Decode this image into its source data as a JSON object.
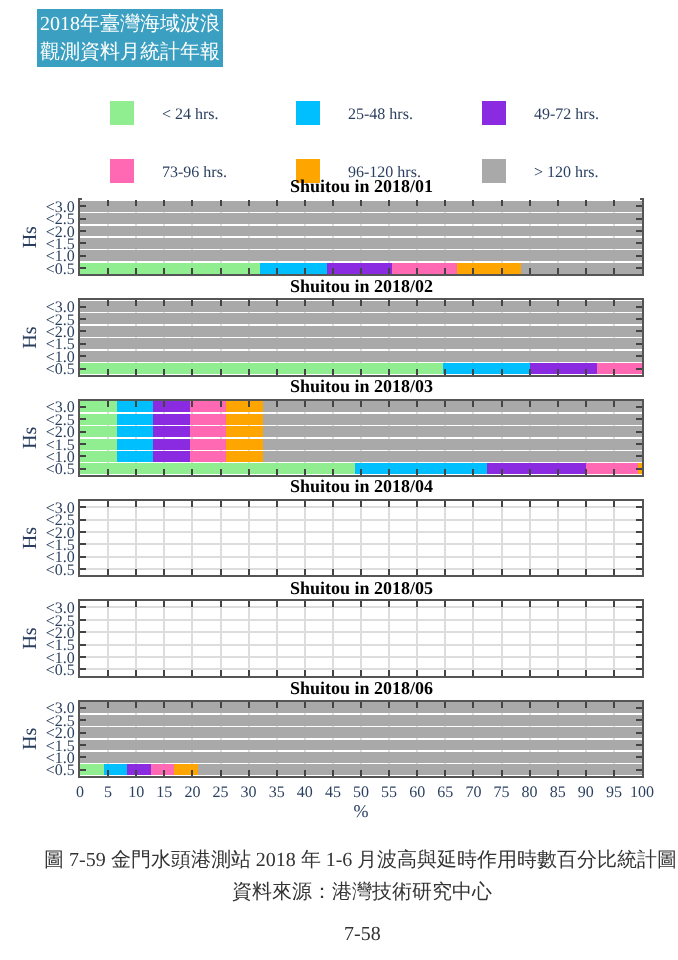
{
  "chart_data": [
    {
      "type": "bar",
      "orientation": "horizontal",
      "stacked": true,
      "title": "Shuitou in 2018/01",
      "ylabel": "Hs",
      "categories": [
        "<3.0",
        "<2.5",
        "<2.0",
        "<1.5",
        "<1.0",
        "<0.5"
      ],
      "xlim": [
        0,
        100
      ],
      "xticks": [
        0,
        5,
        10,
        15,
        20,
        25,
        30,
        35,
        40,
        45,
        50,
        55,
        60,
        65,
        70,
        75,
        80,
        85,
        90,
        95,
        100
      ],
      "tick_labels": "y",
      "grid": true,
      "legend": "top",
      "annotations": [
        "2018年臺灣海域波浪",
        "觀測資料月統計年報"
      ],
      "series": [
        {
          "name": "< 24 hrs.",
          "color": "#90ee90",
          "values": [
            0,
            0,
            0,
            0,
            0,
            32
          ]
        },
        {
          "name": "25-48 hrs.",
          "color": "#00bfff",
          "values": [
            0,
            0,
            0,
            0,
            0,
            12
          ]
        },
        {
          "name": "49-72 hrs.",
          "color": "#8a2be2",
          "values": [
            0,
            0,
            0,
            0,
            0,
            11.5
          ]
        },
        {
          "name": "73-96 hrs.",
          "color": "#ff69b4",
          "values": [
            0,
            0,
            0,
            0,
            0,
            11.5
          ]
        },
        {
          "name": "96-120 hrs.",
          "color": "#ffa500",
          "values": [
            0,
            0,
            0,
            0,
            0,
            11.5
          ]
        },
        {
          "name": "> 120 hrs.",
          "color": "#a9a9a9",
          "values": [
            100,
            100,
            100,
            100,
            100,
            21.5
          ]
        }
      ]
    },
    {
      "type": "bar",
      "orientation": "horizontal",
      "stacked": true,
      "title": "Shuitou in 2018/02",
      "ylabel": "Hs",
      "categories": [
        "<3.0",
        "<2.5",
        "<2.0",
        "<1.5",
        "<1.0",
        "<0.5"
      ],
      "xlim": [
        0,
        100
      ],
      "xticks": [
        0,
        5,
        10,
        15,
        20,
        25,
        30,
        35,
        40,
        45,
        50,
        55,
        60,
        65,
        70,
        75,
        80,
        85,
        90,
        95,
        100
      ],
      "tick_labels": "y",
      "grid": true,
      "series": [
        {
          "color": "#90ee90",
          "values": [
            0,
            0,
            0,
            0,
            0,
            64.5
          ]
        },
        {
          "color": "#00bfff",
          "values": [
            0,
            0,
            0,
            0,
            0,
            15.5
          ]
        },
        {
          "color": "#8a2be2",
          "values": [
            0,
            0,
            0,
            0,
            0,
            12
          ]
        },
        {
          "color": "#ff69b4",
          "values": [
            0,
            0,
            0,
            0,
            0,
            8
          ]
        },
        {
          "color": "#ffa500",
          "values": [
            0,
            0,
            0,
            0,
            0,
            0
          ]
        },
        {
          "color": "#a9a9a9",
          "values": [
            100,
            100,
            100,
            100,
            100,
            0
          ]
        }
      ]
    },
    {
      "type": "bar",
      "orientation": "horizontal",
      "stacked": true,
      "title": "Shuitou in 2018/03",
      "ylabel": "Hs",
      "categories": [
        "<3.0",
        "<2.5",
        "<2.0",
        "<1.5",
        "<1.0",
        "<0.5"
      ],
      "xlim": [
        0,
        100
      ],
      "xticks": [
        0,
        5,
        10,
        15,
        20,
        25,
        30,
        35,
        40,
        45,
        50,
        55,
        60,
        65,
        70,
        75,
        80,
        85,
        90,
        95,
        100
      ],
      "tick_labels": "y",
      "grid": true,
      "series": [
        {
          "color": "#90ee90",
          "values": [
            6.5,
            6.5,
            6.5,
            6.5,
            6.5,
            49
          ]
        },
        {
          "color": "#00bfff",
          "values": [
            6.5,
            6.5,
            6.5,
            6.5,
            6.5,
            23.5
          ]
        },
        {
          "color": "#8a2be2",
          "values": [
            6.5,
            6.5,
            6.5,
            6.5,
            6.5,
            17.5
          ]
        },
        {
          "color": "#ff69b4",
          "values": [
            6.5,
            6.5,
            6.5,
            6.5,
            6.5,
            9.5
          ]
        },
        {
          "color": "#ffa500",
          "values": [
            6.5,
            6.5,
            6.5,
            6.5,
            6.5,
            0.5
          ]
        },
        {
          "color": "#a9a9a9",
          "values": [
            67.5,
            67.5,
            67.5,
            67.5,
            67.5,
            0
          ]
        }
      ]
    },
    {
      "type": "bar",
      "orientation": "horizontal",
      "stacked": true,
      "title": "Shuitou in 2018/04",
      "ylabel": "Hs",
      "categories": [
        "<3.0",
        "<2.5",
        "<2.0",
        "<1.5",
        "<1.0",
        "<0.5"
      ],
      "xlim": [
        0,
        100
      ],
      "xticks": [
        0,
        5,
        10,
        15,
        20,
        25,
        30,
        35,
        40,
        45,
        50,
        55,
        60,
        65,
        70,
        75,
        80,
        85,
        90,
        95,
        100
      ],
      "tick_labels": "y",
      "grid": true
    },
    {
      "type": "bar",
      "orientation": "horizontal",
      "stacked": true,
      "title": "Shuitou in 2018/05",
      "ylabel": "Hs",
      "categories": [
        "<3.0",
        "<2.5",
        "<2.0",
        "<1.5",
        "<1.0",
        "<0.5"
      ],
      "xlim": [
        0,
        100
      ],
      "xticks": [
        0,
        5,
        10,
        15,
        20,
        25,
        30,
        35,
        40,
        45,
        50,
        55,
        60,
        65,
        70,
        75,
        80,
        85,
        90,
        95,
        100
      ],
      "tick_labels": "y",
      "grid": true
    },
    {
      "type": "bar",
      "orientation": "horizontal",
      "stacked": true,
      "title": "Shuitou in 2018/06",
      "ylabel": "Hs",
      "xlabel": "%",
      "categories": [
        "<3.0",
        "<2.5",
        "<2.0",
        "<1.5",
        "<1.0",
        "<0.5"
      ],
      "xlim": [
        0,
        100
      ],
      "xticks": [
        0,
        5,
        10,
        15,
        20,
        25,
        30,
        35,
        40,
        45,
        50,
        55,
        60,
        65,
        70,
        75,
        80,
        85,
        90,
        95,
        100
      ],
      "grid": true,
      "annotations": [
        "圖 7-59 金門水頭港測站 2018 年 1-6 月波高與延時作用時數百分比統計圖",
        "資料來源：港灣技術研究中心",
        "7-58"
      ],
      "series": [
        {
          "color": "#90ee90",
          "values": [
            0,
            0,
            0,
            0,
            0,
            4.2
          ]
        },
        {
          "color": "#00bfff",
          "values": [
            0,
            0,
            0,
            0,
            0,
            4.2
          ]
        },
        {
          "color": "#8a2be2",
          "values": [
            0,
            0,
            0,
            0,
            0,
            4.2
          ]
        },
        {
          "color": "#ff69b4",
          "values": [
            0,
            0,
            0,
            0,
            0,
            4.2
          ]
        },
        {
          "color": "#ffa500",
          "values": [
            0,
            0,
            0,
            0,
            0,
            4.2
          ]
        },
        {
          "color": "#a9a9a9",
          "values": [
            100,
            100,
            100,
            100,
            100,
            79
          ]
        }
      ]
    }
  ]
}
